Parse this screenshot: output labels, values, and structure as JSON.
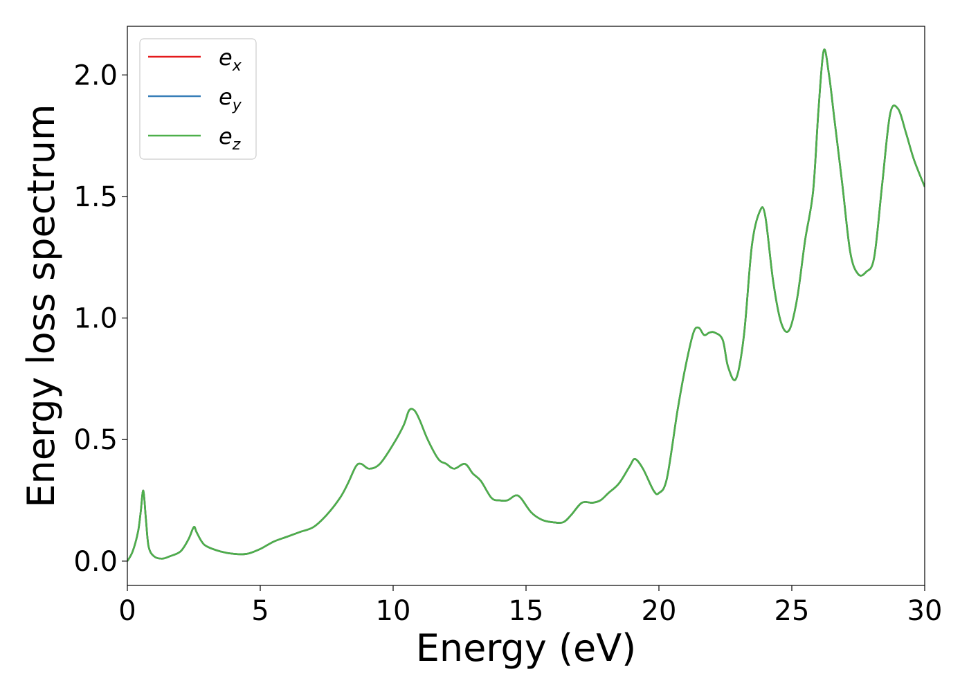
{
  "chart_data": {
    "type": "line",
    "title": "",
    "xlabel": "Energy (eV)",
    "ylabel": "Energy loss spectrum",
    "xlim": [
      0,
      30
    ],
    "ylim": [
      -0.1,
      2.2
    ],
    "xticks": [
      0,
      5,
      10,
      15,
      20,
      25,
      30
    ],
    "xtick_labels": [
      "0",
      "5",
      "10",
      "15",
      "20",
      "25",
      "30"
    ],
    "yticks": [
      0.0,
      0.5,
      1.0,
      1.5,
      2.0
    ],
    "ytick_labels": [
      "0.0",
      "0.5",
      "1.0",
      "1.5",
      "2.0"
    ],
    "grid": false,
    "legend_position": "top-left",
    "x": [
      0,
      0.2,
      0.4,
      0.5,
      0.6,
      0.7,
      0.8,
      1.0,
      1.3,
      1.6,
      2.0,
      2.3,
      2.5,
      2.6,
      2.8,
      3.0,
      3.5,
      4.0,
      4.5,
      5.0,
      5.5,
      6.0,
      6.5,
      7.0,
      7.5,
      8.0,
      8.3,
      8.6,
      8.8,
      9.1,
      9.5,
      10.0,
      10.4,
      10.6,
      10.8,
      11.0,
      11.3,
      11.7,
      12.0,
      12.3,
      12.7,
      13.0,
      13.3,
      13.7,
      14.0,
      14.3,
      14.6,
      14.8,
      15.2,
      15.6,
      16.0,
      16.4,
      16.7,
      17.1,
      17.5,
      17.8,
      18.1,
      18.5,
      18.9,
      19.1,
      19.4,
      19.8,
      20.0,
      20.3,
      20.7,
      21.0,
      21.3,
      21.5,
      21.7,
      21.9,
      22.1,
      22.4,
      22.6,
      22.9,
      23.2,
      23.5,
      23.8,
      24.0,
      24.3,
      24.6,
      24.9,
      25.2,
      25.5,
      25.8,
      26.0,
      26.2,
      26.4,
      26.6,
      26.9,
      27.2,
      27.5,
      27.8,
      28.1,
      28.4,
      28.7,
      29.0,
      29.3,
      29.6,
      30.0
    ],
    "series": [
      {
        "name": "e_x",
        "label_main": "e",
        "label_sub": "x",
        "color": "#e41a1c",
        "shares_values_with": "e_z"
      },
      {
        "name": "e_y",
        "label_main": "e",
        "label_sub": "y",
        "color": "#377eb8",
        "shares_values_with": "e_z"
      },
      {
        "name": "e_z",
        "label_main": "e",
        "label_sub": "z",
        "color": "#4daf4a",
        "values": [
          0.0,
          0.04,
          0.12,
          0.2,
          0.29,
          0.17,
          0.06,
          0.02,
          0.01,
          0.02,
          0.04,
          0.09,
          0.14,
          0.12,
          0.08,
          0.06,
          0.04,
          0.03,
          0.03,
          0.05,
          0.08,
          0.1,
          0.12,
          0.14,
          0.19,
          0.26,
          0.32,
          0.39,
          0.4,
          0.38,
          0.4,
          0.48,
          0.56,
          0.62,
          0.62,
          0.58,
          0.5,
          0.42,
          0.4,
          0.38,
          0.4,
          0.36,
          0.33,
          0.26,
          0.25,
          0.25,
          0.27,
          0.26,
          0.2,
          0.17,
          0.16,
          0.16,
          0.19,
          0.24,
          0.24,
          0.25,
          0.28,
          0.32,
          0.39,
          0.42,
          0.38,
          0.29,
          0.28,
          0.34,
          0.62,
          0.8,
          0.94,
          0.96,
          0.93,
          0.94,
          0.94,
          0.91,
          0.8,
          0.75,
          0.93,
          1.3,
          1.44,
          1.42,
          1.15,
          0.98,
          0.95,
          1.08,
          1.32,
          1.52,
          1.85,
          2.1,
          2.0,
          1.82,
          1.55,
          1.27,
          1.18,
          1.19,
          1.25,
          1.55,
          1.84,
          1.86,
          1.76,
          1.65,
          1.54
        ]
      }
    ]
  }
}
